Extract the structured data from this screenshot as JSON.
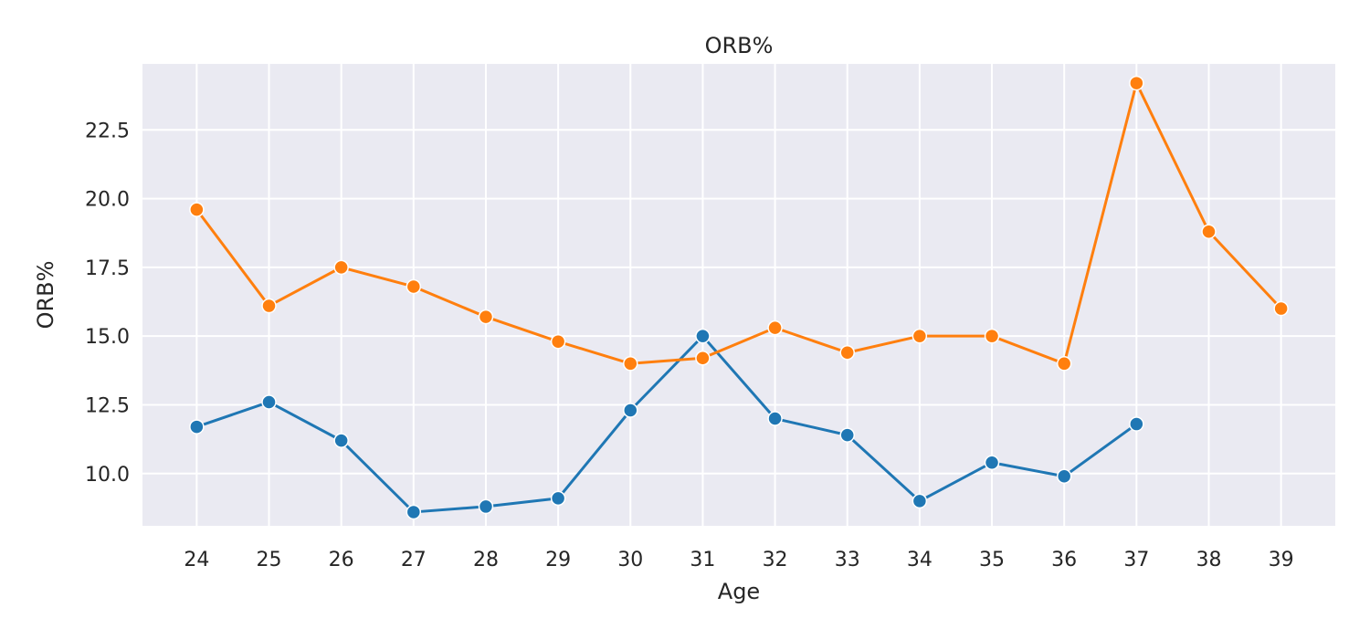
{
  "chart_data": {
    "type": "line",
    "title": "ORB%",
    "xlabel": "Age",
    "ylabel": "ORB%",
    "x": [
      24,
      25,
      26,
      27,
      28,
      29,
      30,
      31,
      32,
      33,
      34,
      35,
      36,
      37,
      38,
      39
    ],
    "xlim": [
      23.25,
      39.75
    ],
    "ylim": [
      8.1,
      24.9
    ],
    "yticks": [
      10.0,
      12.5,
      15.0,
      17.5,
      20.0,
      22.5
    ],
    "ytick_labels": [
      "10.0",
      "12.5",
      "15.0",
      "17.5",
      "20.0",
      "22.5"
    ],
    "grid": true,
    "legend": null,
    "series": [
      {
        "color": "#1f77b4",
        "marker": "circle",
        "x": [
          24,
          25,
          26,
          27,
          28,
          29,
          30,
          31,
          32,
          33,
          34,
          35,
          36,
          37
        ],
        "values": [
          11.7,
          12.6,
          11.2,
          8.6,
          8.8,
          9.1,
          12.3,
          15.0,
          12.0,
          11.4,
          9.0,
          10.4,
          9.9,
          11.8
        ]
      },
      {
        "color": "#ff7f0e",
        "marker": "circle",
        "x": [
          24,
          25,
          26,
          27,
          28,
          29,
          30,
          31,
          32,
          33,
          34,
          35,
          36,
          37,
          38,
          39
        ],
        "values": [
          19.6,
          16.1,
          17.5,
          16.8,
          15.7,
          14.8,
          14.0,
          14.2,
          15.3,
          14.4,
          15.0,
          15.0,
          14.0,
          24.2,
          18.8,
          16.0
        ]
      }
    ]
  },
  "style": {
    "plot_background": "#eaeaf2",
    "grid_color": "#ffffff",
    "text_color": "#262626"
  }
}
